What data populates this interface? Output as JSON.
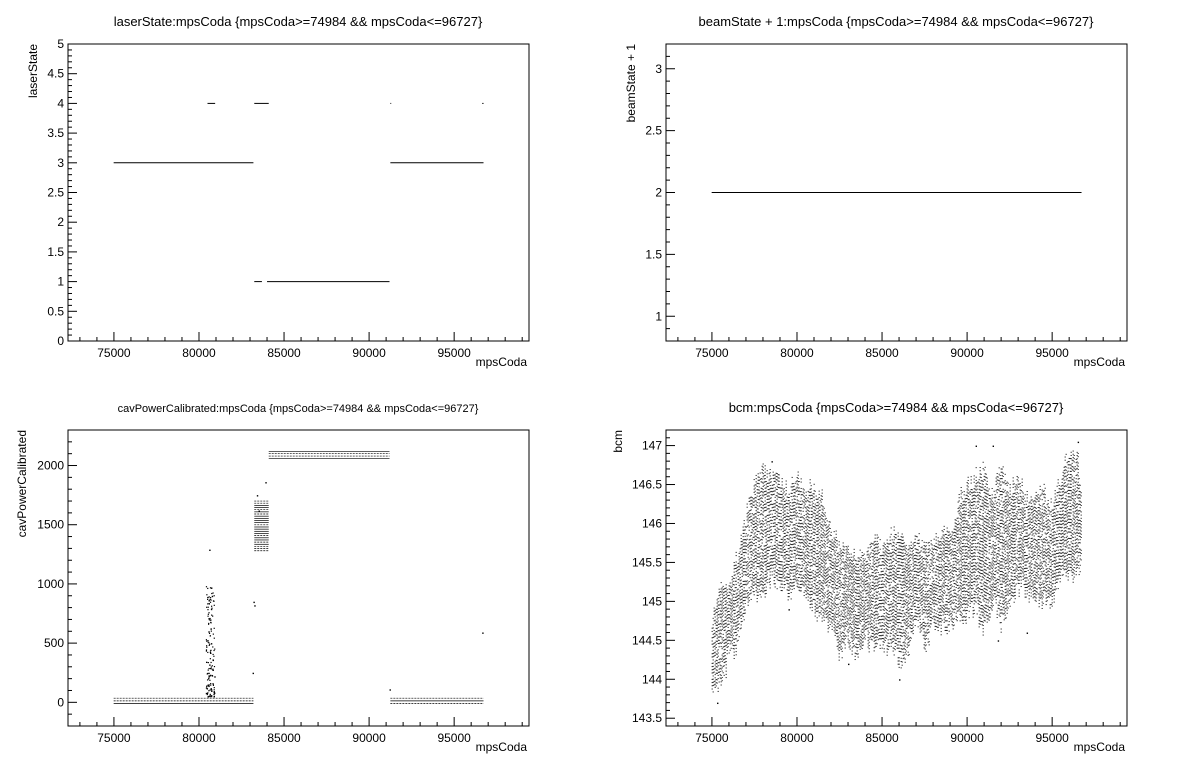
{
  "chart_data": [
    {
      "type": "scatter",
      "title": "laserState:mpsCoda {mpsCoda>=74984 && mpsCoda<=96727}",
      "xlabel": "mpsCoda",
      "ylabel": "laserState",
      "xlim": [
        72300,
        99400
      ],
      "ylim": [
        0,
        5
      ],
      "xticks": [
        75000,
        80000,
        85000,
        90000,
        95000
      ],
      "xtick_labels": [
        "75000",
        "80000",
        "85000",
        "90000",
        "95000"
      ],
      "yticks": [
        0,
        0.5,
        1,
        1.5,
        2,
        2.5,
        3,
        3.5,
        4,
        4.5,
        5
      ],
      "ytick_labels": [
        "0",
        "0.5",
        "1",
        "1.5",
        "2",
        "2.5",
        "3",
        "3.5",
        "4",
        "4.5",
        "5"
      ],
      "segments": [
        {
          "x0": 74984,
          "x1": 83200,
          "y": 3
        },
        {
          "x0": 80500,
          "x1": 80950,
          "y": 4
        },
        {
          "x0": 83250,
          "x1": 84100,
          "y": 4
        },
        {
          "x0": 83250,
          "x1": 83700,
          "y": 1
        },
        {
          "x0": 84000,
          "x1": 91200,
          "y": 1
        },
        {
          "x0": 91250,
          "x1": 96727,
          "y": 3
        },
        {
          "x0": 91250,
          "x1": 91300,
          "y": 4
        },
        {
          "x0": 96650,
          "x1": 96727,
          "y": 4
        }
      ]
    },
    {
      "type": "scatter",
      "title": "beamState + 1:mpsCoda {mpsCoda>=74984 && mpsCoda<=96727}",
      "xlabel": "mpsCoda",
      "ylabel": "beamState + 1",
      "xlim": [
        72300,
        99400
      ],
      "ylim": [
        0.8,
        3.2
      ],
      "xticks": [
        75000,
        80000,
        85000,
        90000,
        95000
      ],
      "xtick_labels": [
        "75000",
        "80000",
        "85000",
        "90000",
        "95000"
      ],
      "yticks": [
        1,
        1.5,
        2,
        2.5,
        3
      ],
      "ytick_labels": [
        "1",
        "1.5",
        "2",
        "2.5",
        "3"
      ],
      "segments": [
        {
          "x0": 74984,
          "x1": 96727,
          "y": 2
        }
      ]
    },
    {
      "type": "scatter",
      "title": "cavPowerCalibrated:mpsCoda {mpsCoda>=74984 && mpsCoda<=96727}",
      "xlabel": "mpsCoda",
      "ylabel": "cavPowerCalibrated",
      "xlim": [
        72300,
        99400
      ],
      "ylim": [
        -200,
        2300
      ],
      "xticks": [
        75000,
        80000,
        85000,
        90000,
        95000
      ],
      "xtick_labels": [
        "75000",
        "80000",
        "85000",
        "90000",
        "95000"
      ],
      "yticks": [
        0,
        500,
        1000,
        1500,
        2000
      ],
      "ytick_labels": [
        "0",
        "500",
        "1000",
        "1500",
        "2000"
      ],
      "bands": [
        {
          "x0": 74984,
          "x1": 83200,
          "y0": -10,
          "y1": 35
        },
        {
          "x0": 83250,
          "x1": 84100,
          "y0": 1280,
          "y1": 1700
        },
        {
          "x0": 84100,
          "x1": 91200,
          "y0": 2060,
          "y1": 2120
        },
        {
          "x0": 91250,
          "x1": 96727,
          "y0": -10,
          "y1": 35
        }
      ],
      "points": [
        [
          80400,
          80
        ],
        [
          80500,
          150
        ],
        [
          80550,
          250
        ],
        [
          80600,
          320
        ],
        [
          80650,
          420
        ],
        [
          80700,
          500
        ],
        [
          80550,
          600
        ],
        [
          80650,
          700
        ],
        [
          80700,
          790
        ],
        [
          80750,
          900
        ],
        [
          80700,
          970
        ],
        [
          80600,
          1290
        ],
        [
          80800,
          360
        ],
        [
          80900,
          220
        ],
        [
          80450,
          120
        ],
        [
          83200,
          850
        ],
        [
          83250,
          820
        ],
        [
          83150,
          250
        ],
        [
          83400,
          1750
        ],
        [
          83500,
          1620
        ],
        [
          83900,
          1860
        ],
        [
          96650,
          590
        ],
        [
          91200,
          110
        ]
      ]
    },
    {
      "type": "scatter",
      "title": "bcm:mpsCoda {mpsCoda>=74984 && mpsCoda<=96727}",
      "xlabel": "mpsCoda",
      "ylabel": "bcm",
      "xlim": [
        72300,
        99400
      ],
      "ylim": [
        143.4,
        147.2
      ],
      "xticks": [
        75000,
        80000,
        85000,
        90000,
        95000
      ],
      "xtick_labels": [
        "75000",
        "80000",
        "85000",
        "90000",
        "95000"
      ],
      "yticks": [
        143.5,
        144,
        144.5,
        145,
        145.5,
        146,
        146.5,
        147
      ],
      "ytick_labels": [
        "143.5",
        "144",
        "144.5",
        "145",
        "145.5",
        "146",
        "146.5",
        "147"
      ],
      "envelope": {
        "x": [
          74984,
          75500,
          76000,
          76500,
          77000,
          77500,
          78000,
          78500,
          79000,
          79500,
          80000,
          80500,
          81000,
          81500,
          82000,
          82500,
          83000,
          83500,
          84000,
          84500,
          85000,
          85500,
          86000,
          86500,
          87000,
          87500,
          88000,
          88500,
          89000,
          89500,
          90000,
          90500,
          91000,
          91500,
          92000,
          92500,
          93000,
          93500,
          94000,
          94500,
          95000,
          95500,
          96000,
          96500,
          96727
        ],
        "ymin": [
          143.9,
          143.9,
          144.3,
          144.4,
          145.0,
          145.1,
          145.1,
          145.3,
          145.2,
          145.1,
          145.2,
          145.1,
          144.9,
          144.7,
          144.7,
          144.3,
          144.5,
          144.3,
          144.5,
          144.4,
          144.4,
          144.4,
          144.2,
          144.3,
          144.8,
          144.4,
          144.7,
          144.7,
          144.7,
          144.8,
          144.8,
          144.9,
          144.6,
          145.0,
          144.7,
          144.9,
          145.2,
          145.1,
          145.0,
          145.0,
          145.0,
          145.3,
          145.3,
          145.4,
          145.4
        ],
        "ymax": [
          144.8,
          145.2,
          145.2,
          145.6,
          146.1,
          146.5,
          146.7,
          146.6,
          146.5,
          146.4,
          146.6,
          146.4,
          146.5,
          146.3,
          145.9,
          145.7,
          145.7,
          145.6,
          145.6,
          145.8,
          145.7,
          145.9,
          145.8,
          145.7,
          145.8,
          145.7,
          145.7,
          145.9,
          145.8,
          146.3,
          146.5,
          146.6,
          146.7,
          146.3,
          146.8,
          146.4,
          146.6,
          146.3,
          146.4,
          146.4,
          146.2,
          146.6,
          146.9,
          146.8,
          146.3
        ]
      },
      "points": [
        [
          75300,
          143.7
        ],
        [
          78500,
          146.8
        ],
        [
          90500,
          147.0
        ],
        [
          91500,
          147.0
        ],
        [
          96500,
          147.05
        ],
        [
          79500,
          144.9
        ],
        [
          83000,
          144.2
        ],
        [
          86000,
          144.0
        ],
        [
          91800,
          144.5
        ],
        [
          93500,
          144.6
        ]
      ]
    }
  ]
}
